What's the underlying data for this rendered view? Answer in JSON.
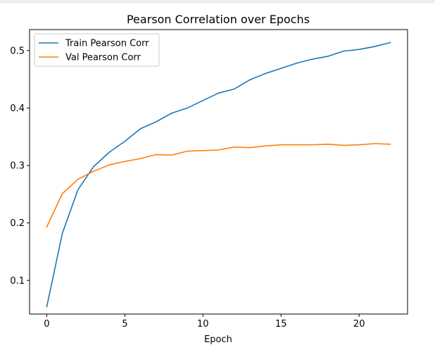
{
  "chart_data": {
    "type": "line",
    "title": "Pearson Correlation over Epochs",
    "xlabel": "Epoch",
    "ylabel": "",
    "xlim": [
      -1.1,
      23.1
    ],
    "ylim": [
      0.0415,
      0.5365
    ],
    "xticks": [
      0,
      5,
      10,
      15,
      20
    ],
    "yticks": [
      0.1,
      0.2,
      0.3,
      0.4,
      0.5
    ],
    "grid": false,
    "legend_position": "top-left",
    "x": [
      0,
      1,
      2,
      3,
      4,
      5,
      6,
      7,
      8,
      9,
      10,
      11,
      12,
      13,
      14,
      15,
      16,
      17,
      18,
      19,
      20,
      21,
      22
    ],
    "series": [
      {
        "name": "Train Pearson Corr",
        "color": "#1f77b4",
        "values": [
          0.054,
          0.182,
          0.258,
          0.298,
          0.323,
          0.342,
          0.364,
          0.376,
          0.391,
          0.4,
          0.413,
          0.426,
          0.433,
          0.449,
          0.46,
          0.469,
          0.478,
          0.485,
          0.49,
          0.499,
          0.502,
          0.507,
          0.514
        ]
      },
      {
        "name": "Val Pearson Corr",
        "color": "#ff7f0e",
        "values": [
          0.193,
          0.251,
          0.276,
          0.29,
          0.301,
          0.307,
          0.312,
          0.319,
          0.318,
          0.325,
          0.326,
          0.327,
          0.332,
          0.331,
          0.334,
          0.336,
          0.336,
          0.336,
          0.337,
          0.335,
          0.336,
          0.338,
          0.337
        ]
      }
    ]
  }
}
